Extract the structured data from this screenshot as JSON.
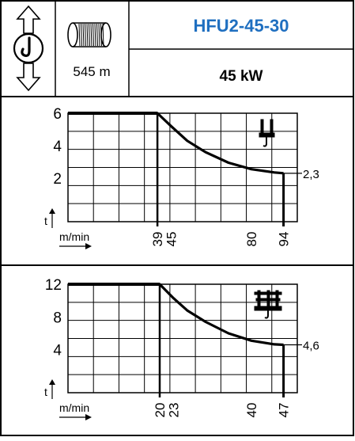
{
  "header": {
    "model": "HFU2-45-30",
    "power": "45 kW",
    "rope_length": "545 m",
    "icons": {
      "direction": "up-down-arrow-hook-icon",
      "drum": "rope-drum-icon"
    }
  },
  "colors": {
    "model_text": "#1f6fc0",
    "line": "#000000",
    "background": "#ffffff"
  },
  "chart_data": [
    {
      "type": "line",
      "ylabel": "t",
      "xlabel": "m/min",
      "yticks": [
        "6",
        "4",
        "2"
      ],
      "ytick_values": [
        6,
        4,
        2
      ],
      "ylim": [
        0,
        6
      ],
      "xlim": [
        0,
        100
      ],
      "xticks": [
        "39",
        "45",
        "80",
        "94"
      ],
      "xtick_values": [
        39,
        45,
        80,
        94
      ],
      "x": [
        0,
        39,
        45,
        52,
        60,
        70,
        80,
        90,
        94
      ],
      "y": [
        6,
        6,
        5.2,
        4.3,
        3.6,
        2.95,
        2.55,
        2.35,
        2.3
      ],
      "end_value": 2.3,
      "end_label": "2,3",
      "end_drop_x": 94,
      "icon": "single-trolley-hoist-icon",
      "grid": true
    },
    {
      "type": "line",
      "ylabel": "t",
      "xlabel": "m/min",
      "yticks": [
        "12",
        "8",
        "4"
      ],
      "ytick_values": [
        12,
        8,
        4
      ],
      "ylim": [
        0,
        12
      ],
      "xlim": [
        0,
        50
      ],
      "xticks": [
        "20",
        "23",
        "40",
        "47"
      ],
      "xtick_values": [
        20,
        23,
        40,
        47
      ],
      "x": [
        0,
        20,
        23,
        26,
        30,
        35,
        40,
        45,
        47
      ],
      "y": [
        12,
        12,
        10.3,
        8.8,
        7.4,
        6.0,
        5.1,
        4.65,
        4.6
      ],
      "end_value": 4.6,
      "end_label": "4,6",
      "end_drop_x": 47,
      "icon": "double-trolley-hoist-icon",
      "grid": true
    }
  ]
}
